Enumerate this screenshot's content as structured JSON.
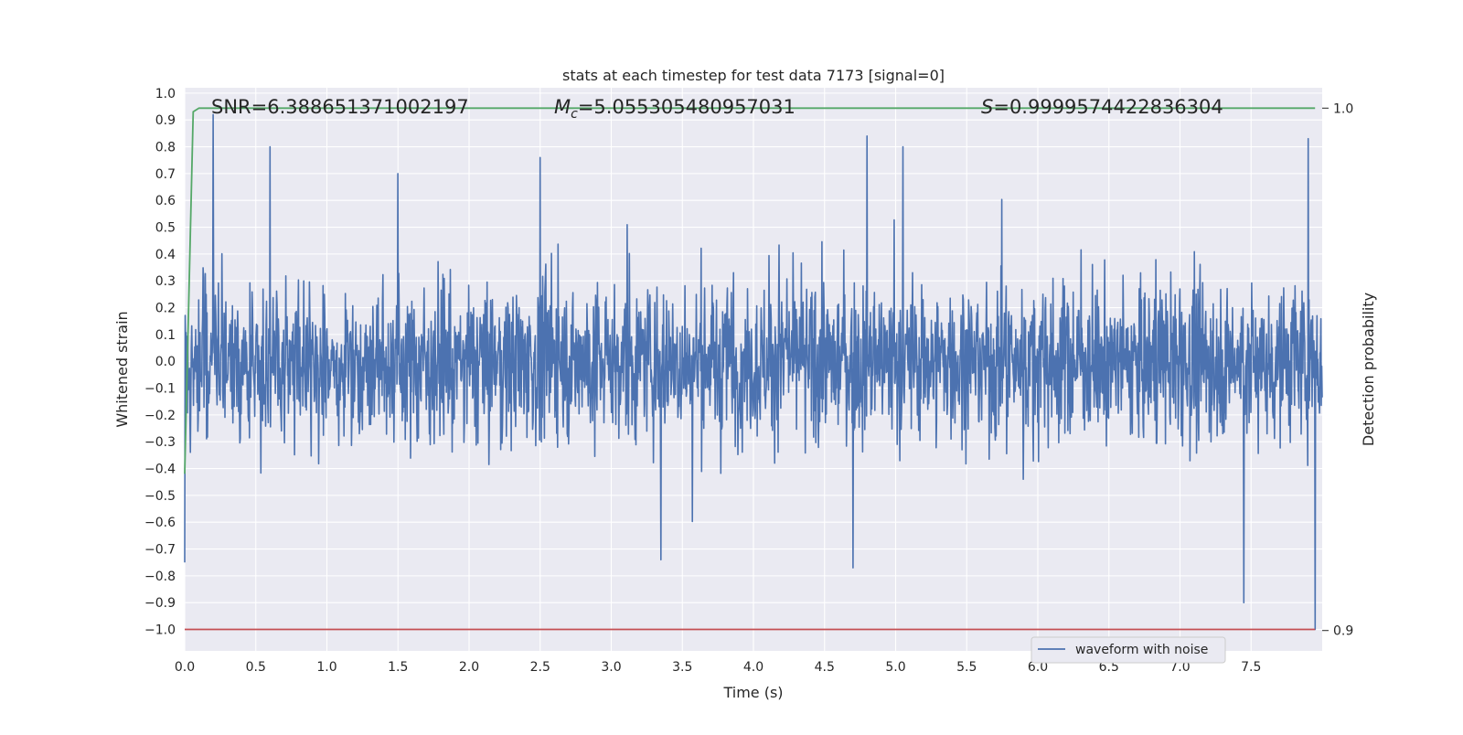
{
  "chart_data": {
    "type": "line",
    "title": "stats at each timestep for test data 7173 [signal=0]",
    "xlabel": "Time (s)",
    "ylabel": "Whitened strain",
    "y2label": "Detection probability",
    "xlim": [
      0.0,
      8.0
    ],
    "ylim": [
      -1.08,
      1.02
    ],
    "y2lim": [
      0.8961,
      1.0039
    ],
    "xticks": [
      "0.0",
      "0.5",
      "1.0",
      "1.5",
      "2.0",
      "2.5",
      "3.0",
      "3.5",
      "4.0",
      "4.5",
      "5.0",
      "5.5",
      "6.0",
      "6.5",
      "7.0",
      "7.5"
    ],
    "yticks": [
      "1.0",
      "0.9",
      "0.8",
      "0.7",
      "0.6",
      "0.5",
      "0.4",
      "0.3",
      "0.2",
      "0.1",
      "0.0",
      "−0.1",
      "−0.2",
      "−0.3",
      "−0.4",
      "−0.5",
      "−0.6",
      "−0.7",
      "−0.8",
      "−0.9",
      "−1.0"
    ],
    "y2ticks": [
      "1.0",
      "0.9"
    ],
    "grid": true,
    "legend_position": "lower-right",
    "annotations": {
      "snr": "SNR=6.388651371002197",
      "mc_symbol": "M",
      "mc_sub": "c",
      "mc_value": "=5.055305480957031",
      "s_symbol": "S",
      "s_value": "=0.9999574422836304"
    },
    "series": [
      {
        "name": "waveform with noise",
        "axis": "left",
        "color": "#4c72b0",
        "description_points": "noisy whitened strain, envelope approx ±0.45 with spikes",
        "peaks": [
          [
            0.2,
            0.92
          ],
          [
            0.6,
            0.8
          ],
          [
            1.5,
            0.7
          ],
          [
            2.5,
            0.76
          ],
          [
            4.8,
            0.84
          ],
          [
            5.05,
            0.8
          ],
          [
            7.9,
            0.83
          ],
          [
            7.45,
            -0.9
          ],
          [
            7.95,
            -1.0
          ],
          [
            3.35,
            -0.74
          ],
          [
            4.7,
            -0.77
          ]
        ]
      },
      {
        "name": "",
        "axis": "right",
        "color": "#55a868",
        "x": [
          0.0,
          0.03,
          0.06,
          0.1,
          7.95
        ],
        "y": [
          0.93,
          0.965,
          0.9993,
          1.0,
          1.0
        ]
      },
      {
        "name": "",
        "axis": "left",
        "color": "#c44e52",
        "x": [
          0.0,
          7.95
        ],
        "y": [
          -1.0,
          -1.0
        ]
      }
    ]
  }
}
